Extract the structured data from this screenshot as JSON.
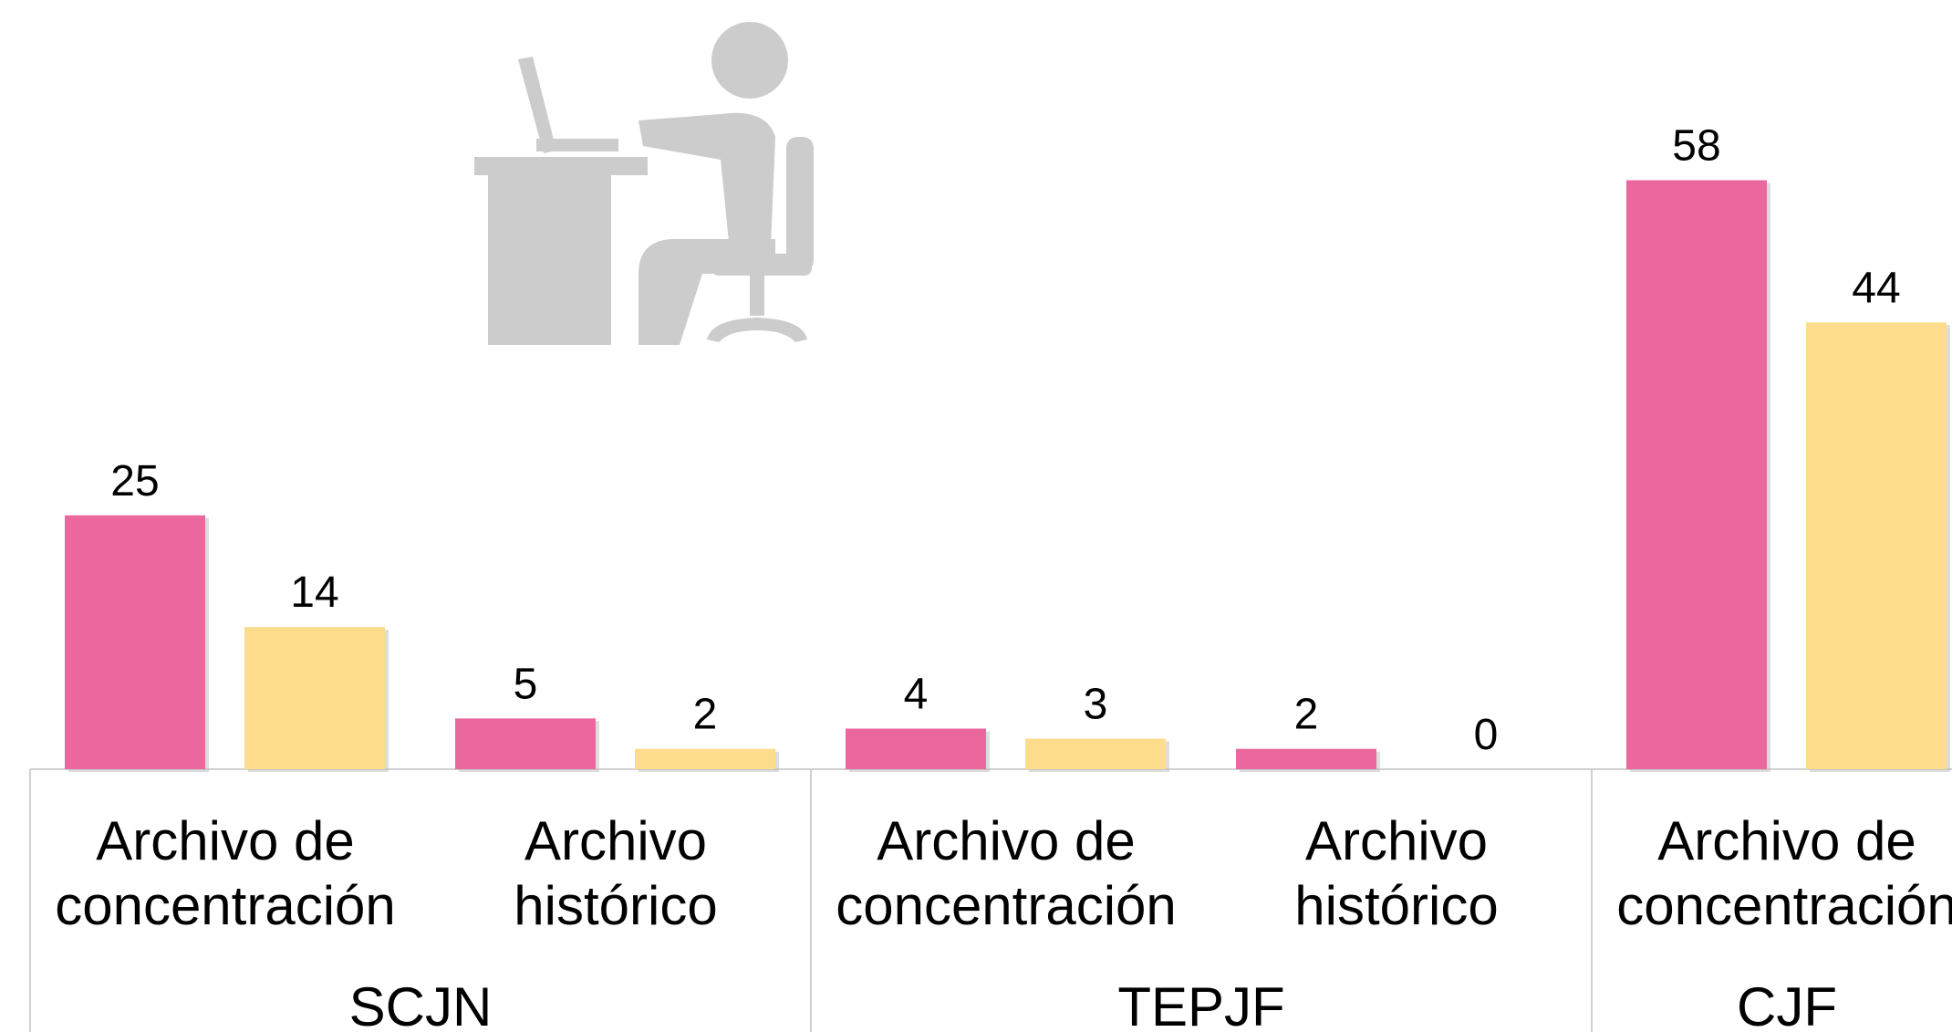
{
  "chart_data": {
    "type": "bar",
    "groups": [
      {
        "name": "SCJN",
        "categories": [
          "Archivo de concentración",
          "Archivo histórico"
        ]
      },
      {
        "name": "TEPJF",
        "categories": [
          "Archivo de concentración",
          "Archivo histórico"
        ]
      },
      {
        "name": "CJF",
        "categories": [
          "Archivo de concentración"
        ]
      }
    ],
    "series": [
      {
        "color": "#eb689f",
        "values": [
          25,
          5,
          4,
          2,
          58
        ]
      },
      {
        "color": "#fddc8c",
        "values": [
          14,
          2,
          3,
          0,
          44
        ]
      }
    ],
    "ylim": [
      0,
      62
    ]
  }
}
